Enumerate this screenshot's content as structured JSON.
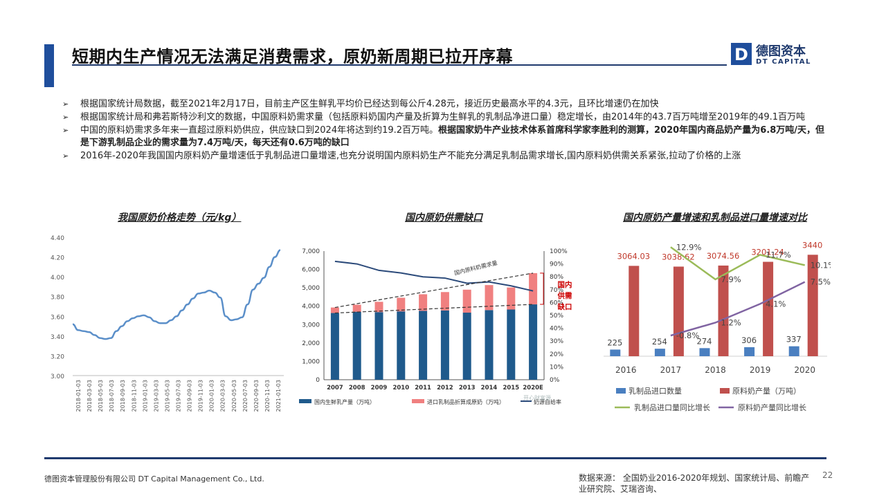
{
  "header": {
    "title": "短期内生产情况无法满足消费需求，原奶新周期已拉开序幕",
    "logo_cn": "德图资本",
    "logo_en": "DT CAPITAL",
    "logo_letter": "D"
  },
  "bullets": [
    {
      "text": "根据国家统计局数据，截至2021年2月17日，目前主产区生鲜乳平均价已经达到每公斤4.28元，接近历史最高水平的4.3元，且环比增速仍在加快",
      "bold": ""
    },
    {
      "text": "根据国家统计局和弗若斯特沙利文的数据，中国原料奶需求量（包括原料奶国内产量及折算为生鲜乳的乳制品净进口量）稳定增长，由2014年的43.7百万吨增至2019年的49.1百万吨",
      "bold": ""
    },
    {
      "text": "中国的原料奶需求多年来一直超过原料奶供应，供应缺口到2024年将达到约19.2百万吨。",
      "bold": "根据国家奶牛产业技术体系首席科学家李胜利的测算，2020年国内商品奶产量为6.8万吨/天，但是下游乳制品企业的需求量为7.4万吨/天，每天还有0.6万吨的缺口"
    },
    {
      "text": "2016年-2020年我国国内原料奶产量增速低于乳制品进口量增速,也充分说明国内原料奶生产不能充分满足乳制品需求增长,国内原料奶供需关系紧张,拉动了价格的上涨",
      "bold": ""
    }
  ],
  "chart1": {
    "title": "我国原奶价格走势（元/kg）",
    "chart_data": {
      "type": "line",
      "title": "我国原奶价格走势（元/kg）",
      "ylim": [
        3.0,
        4.4
      ],
      "yticks": [
        "4.40",
        "4.20",
        "4.00",
        "3.80",
        "3.60",
        "3.40",
        "3.20",
        "3.00"
      ],
      "xticks": [
        "2018-01-03",
        "2018-03-03",
        "2018-05-03",
        "2018-07-03",
        "2018-09-03",
        "2018-11-03",
        "2019-01-03",
        "2019-03-03",
        "2019-05-03",
        "2019-07-03",
        "2019-09-03",
        "2019-11-03",
        "2020-01-03",
        "2020-03-03",
        "2020-05-03",
        "2020-07-03",
        "2020-09-03",
        "2020-11-03",
        "2021-01-03"
      ],
      "series": [
        {
          "values": [
            3.52,
            3.46,
            3.45,
            3.44,
            3.41,
            3.38,
            3.37,
            3.38,
            3.45,
            3.5,
            3.55,
            3.58,
            3.6,
            3.61,
            3.59,
            3.55,
            3.53,
            3.53,
            3.56,
            3.6,
            3.66,
            3.72,
            3.78,
            3.83,
            3.84,
            3.86,
            3.84,
            3.79,
            3.6,
            3.56,
            3.57,
            3.59,
            3.72,
            3.87,
            3.93,
            3.99,
            4.1,
            4.2,
            4.27
          ]
        }
      ]
    }
  },
  "chart2": {
    "title": "国内原奶供需缺口",
    "annotation_demand": "国内原料奶需求量",
    "annotation_gap": "国内供需缺口",
    "legend": [
      "国内生鲜乳产量（万吨）",
      "进口乳制品折算成原奶（万吨）",
      "奶源自给率"
    ],
    "watermark": "开心财富源",
    "chart_data": {
      "type": "bar",
      "categories": [
        "2007",
        "2008",
        "2009",
        "2010",
        "2011",
        "2012",
        "2013",
        "2014",
        "2015",
        "2020E"
      ],
      "ylim": [
        0,
        7000
      ],
      "y2lim": [
        0,
        100
      ],
      "yticks": [
        "7,000",
        "6,000",
        "5,000",
        "4,000",
        "3,000",
        "2,000",
        "1,000",
        "0"
      ],
      "y2ticks": [
        "100%",
        "90%",
        "80%",
        "70%",
        "60%",
        "50%",
        "40%",
        "30%",
        "20%",
        "10%",
        "0%"
      ],
      "series": [
        {
          "name": "国内生鲜乳产量（万吨）",
          "values": [
            3630,
            3700,
            3680,
            3720,
            3750,
            3770,
            3650,
            3790,
            3820,
            4100
          ]
        },
        {
          "name": "进口乳制品折算成原奶（万吨）",
          "values": [
            300,
            380,
            560,
            740,
            900,
            1000,
            1250,
            1360,
            1200,
            1700
          ]
        },
        {
          "name": "奶源自给率",
          "values": [
            92,
            90,
            85,
            83,
            80,
            79,
            75,
            76,
            73,
            69
          ]
        }
      ],
      "color_domestic": "#1f5a8c",
      "color_import": "#f08080",
      "color_ratio": "#2b4a7a"
    }
  },
  "chart3": {
    "title": "国内原奶产量增速和乳制品进口量增速对比",
    "legend": [
      "乳制品进口数量",
      "原料奶产量（万吨）",
      "乳制品进口量同比增长",
      "原料奶产量同比增长"
    ],
    "chart_data": {
      "type": "bar",
      "categories": [
        "2016",
        "2017",
        "2018",
        "2019",
        "2020"
      ],
      "series": [
        {
          "name": "乳制品进口数量",
          "values": [
            225,
            254,
            274,
            306,
            337
          ],
          "labels": [
            "225",
            "254",
            "274",
            "306",
            "337"
          ]
        },
        {
          "name": "原料奶产量（万吨）",
          "values": [
            3064.03,
            3038.62,
            3074.56,
            3201.24,
            3440
          ],
          "labels": [
            "3064.03",
            "3038.62",
            "3074.56",
            "3201.24",
            "3440"
          ]
        },
        {
          "name": "乳制品进口量同比增长",
          "values": [
            12.9,
            7.9,
            11.7,
            10.1
          ],
          "x": [
            "2017",
            "2018",
            "2019",
            "2020"
          ],
          "labels": [
            "12.9%",
            "7.9%",
            "11.7%",
            "10.1%"
          ]
        },
        {
          "name": "原料奶产量同比增长",
          "values": [
            -0.8,
            1.2,
            4.1,
            7.5
          ],
          "x": [
            "2017",
            "2018",
            "2019",
            "2020"
          ],
          "labels": [
            "-0.8%",
            "1.2%",
            "4.1%",
            "7.5%"
          ]
        }
      ],
      "color_import": "#4a7fc0",
      "color_raw": "#c0504d",
      "color_import_growth": "#9bbb59",
      "color_raw_growth": "#8064a2"
    }
  },
  "footer": {
    "company": "德图资本管理股份有限公司  DT Capital Management  Co., Ltd.",
    "source": "数据来源： 全国奶业2016-2020年规划、国家统计局、前瞻产业研究院、艾瑞咨询、",
    "page": "22"
  }
}
